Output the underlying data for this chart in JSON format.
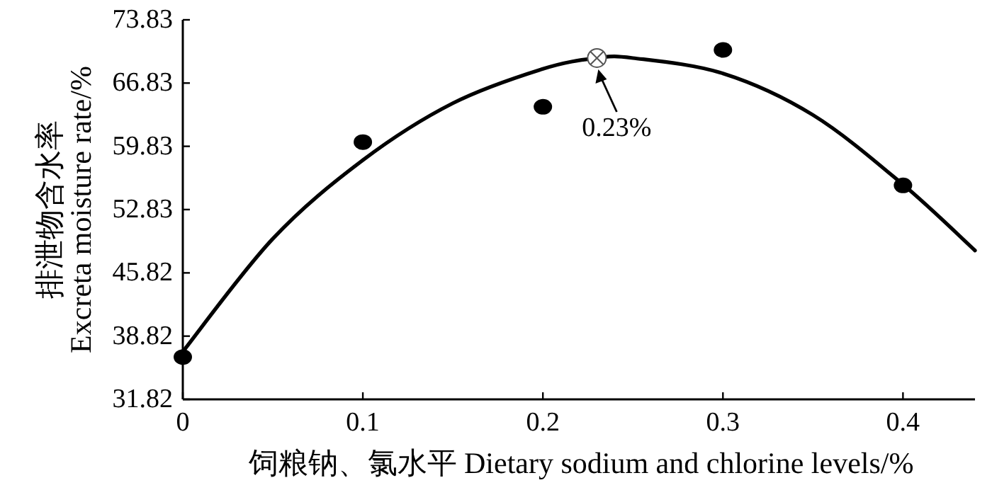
{
  "chart_data": {
    "type": "scatter",
    "xlabel": "饲粮钠、氯水平 Dietary sodium and chlorine levels/%",
    "ylabel": "排泄物含水率 Excreta moisture rate/%",
    "xlim": [
      0,
      0.44
    ],
    "ylim": [
      31.82,
      73.83
    ],
    "xticks": [
      0,
      0.1,
      0.2,
      0.3,
      0.4
    ],
    "yticks": [
      31.82,
      38.82,
      45.82,
      52.83,
      59.83,
      66.83,
      73.83
    ],
    "series": [
      {
        "type": "scatter",
        "marker": "circle",
        "color": "#000000",
        "x": [
          0,
          0.1,
          0.2,
          0.3,
          0.4
        ],
        "values": [
          36.5,
          60.3,
          64.2,
          70.5,
          55.5
        ]
      },
      {
        "type": "line",
        "marker": "none",
        "color": "#000000",
        "x": [
          0,
          0.05,
          0.1,
          0.15,
          0.2,
          0.23,
          0.25,
          0.3,
          0.35,
          0.4,
          0.44
        ],
        "values": [
          37.1,
          49.6,
          58.3,
          64.6,
          68.4,
          69.6,
          69.6,
          67.9,
          63.3,
          55.6,
          48.3
        ]
      }
    ],
    "annotations": [
      {
        "text": "0.23%",
        "x": 0.23,
        "y": 69.6
      }
    ]
  }
}
